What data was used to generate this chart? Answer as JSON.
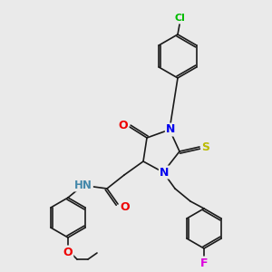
{
  "bg_color": "#eaeaea",
  "bond_color": "#1a1a1a",
  "atom_colors": {
    "N": "#0000ee",
    "O": "#ee0000",
    "S": "#bbbb00",
    "Cl": "#00bb00",
    "F": "#dd00dd",
    "H": "#4488aa"
  },
  "figsize": [
    3.0,
    3.0
  ],
  "dpi": 100
}
